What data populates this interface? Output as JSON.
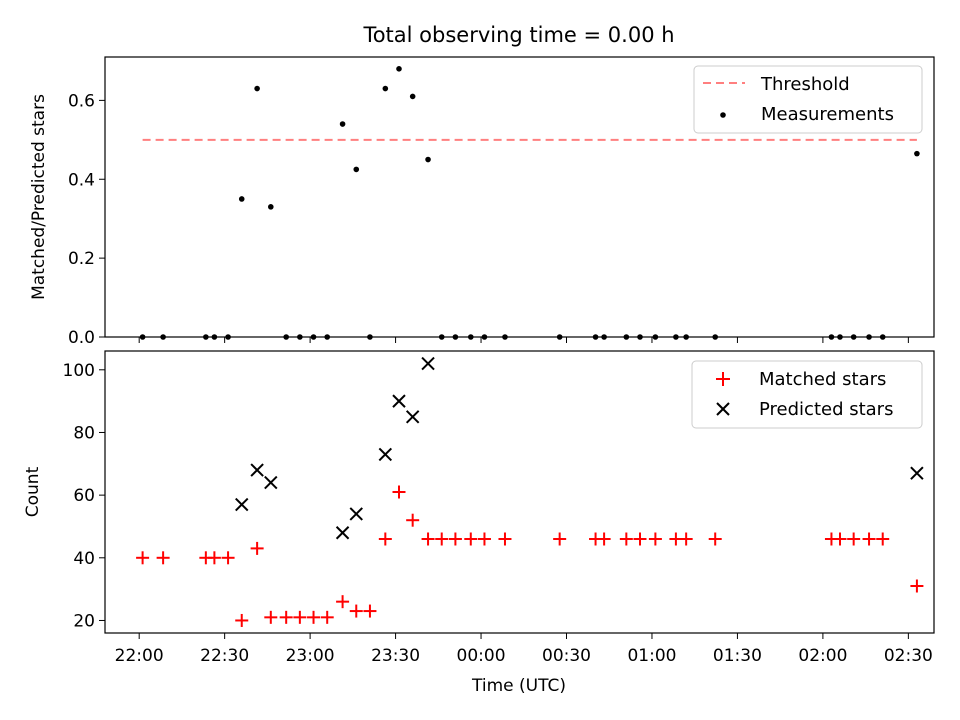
{
  "figure": {
    "title": "Total observing time = 0.00 h",
    "xlabel": "Time (UTC)"
  },
  "chart_data": [
    {
      "type": "scatter",
      "ylabel": "Matched/Predicted stars",
      "x_unit": "hours since 22:00 UTC",
      "xlim": [
        -0.2,
        4.65
      ],
      "ylim": [
        0,
        0.71
      ],
      "yticks": [
        "0.0",
        "0.2",
        "0.4",
        "0.6"
      ],
      "ytick_values": [
        0.0,
        0.2,
        0.4,
        0.6
      ],
      "legend_position": "top-right",
      "threshold": {
        "name": "Threshold",
        "value": 0.5,
        "x_start": 0.02,
        "x_end": 4.55,
        "color": "#ff7f7f"
      },
      "series": [
        {
          "name": "Measurements",
          "color": "#000000",
          "points": [
            [
              0.02,
              0.0
            ],
            [
              0.14,
              0.0
            ],
            [
              0.39,
              0.0
            ],
            [
              0.44,
              0.0
            ],
            [
              0.52,
              0.0
            ],
            [
              0.6,
              0.35
            ],
            [
              0.69,
              0.63
            ],
            [
              0.77,
              0.33
            ],
            [
              0.86,
              0.0
            ],
            [
              0.94,
              0.0
            ],
            [
              1.02,
              0.0
            ],
            [
              1.1,
              0.0
            ],
            [
              1.19,
              0.54
            ],
            [
              1.27,
              0.425
            ],
            [
              1.35,
              0.0
            ],
            [
              1.44,
              0.63
            ],
            [
              1.52,
              0.68
            ],
            [
              1.6,
              0.61
            ],
            [
              1.69,
              0.45
            ],
            [
              1.77,
              0.0
            ],
            [
              1.85,
              0.0
            ],
            [
              1.94,
              0.0
            ],
            [
              2.02,
              0.0
            ],
            [
              2.14,
              0.0
            ],
            [
              2.46,
              0.0
            ],
            [
              2.67,
              0.0
            ],
            [
              2.72,
              0.0
            ],
            [
              2.85,
              0.0
            ],
            [
              2.93,
              0.0
            ],
            [
              3.02,
              0.0
            ],
            [
              3.14,
              0.0
            ],
            [
              3.2,
              0.0
            ],
            [
              3.37,
              0.0
            ],
            [
              4.05,
              0.0
            ],
            [
              4.1,
              0.0
            ],
            [
              4.18,
              0.0
            ],
            [
              4.27,
              0.0
            ],
            [
              4.35,
              0.0
            ],
            [
              4.55,
              0.465
            ]
          ]
        }
      ]
    },
    {
      "type": "scatter",
      "ylabel": "Count",
      "x_unit": "hours since 22:00 UTC",
      "xlim": [
        -0.2,
        4.65
      ],
      "ylim": [
        16,
        106
      ],
      "yticks": [
        "20",
        "40",
        "60",
        "80",
        "100"
      ],
      "ytick_values": [
        20,
        40,
        60,
        80,
        100
      ],
      "xticks": [
        "22:00",
        "22:30",
        "23:00",
        "23:30",
        "00:00",
        "00:30",
        "01:00",
        "01:30",
        "02:00",
        "02:30"
      ],
      "xtick_values": [
        0,
        0.5,
        1.0,
        1.5,
        2.0,
        2.5,
        3.0,
        3.5,
        4.0,
        4.5
      ],
      "legend_position": "top-right",
      "series": [
        {
          "name": "Matched stars",
          "color": "#ff0000",
          "marker": "plus",
          "points": [
            [
              0.02,
              40
            ],
            [
              0.14,
              40
            ],
            [
              0.39,
              40
            ],
            [
              0.44,
              40
            ],
            [
              0.52,
              40
            ],
            [
              0.6,
              20
            ],
            [
              0.69,
              43
            ],
            [
              0.77,
              21
            ],
            [
              0.86,
              21
            ],
            [
              0.94,
              21
            ],
            [
              1.02,
              21
            ],
            [
              1.1,
              21
            ],
            [
              1.19,
              26
            ],
            [
              1.27,
              23
            ],
            [
              1.35,
              23
            ],
            [
              1.44,
              46
            ],
            [
              1.52,
              61
            ],
            [
              1.6,
              52
            ],
            [
              1.69,
              46
            ],
            [
              1.77,
              46
            ],
            [
              1.85,
              46
            ],
            [
              1.94,
              46
            ],
            [
              2.02,
              46
            ],
            [
              2.14,
              46
            ],
            [
              2.46,
              46
            ],
            [
              2.67,
              46
            ],
            [
              2.72,
              46
            ],
            [
              2.85,
              46
            ],
            [
              2.93,
              46
            ],
            [
              3.02,
              46
            ],
            [
              3.14,
              46
            ],
            [
              3.2,
              46
            ],
            [
              3.37,
              46
            ],
            [
              4.05,
              46
            ],
            [
              4.1,
              46
            ],
            [
              4.18,
              46
            ],
            [
              4.27,
              46
            ],
            [
              4.35,
              46
            ],
            [
              4.55,
              31
            ]
          ]
        },
        {
          "name": "Predicted stars",
          "color": "#000000",
          "marker": "x",
          "points": [
            [
              0.6,
              57
            ],
            [
              0.69,
              68
            ],
            [
              0.77,
              64
            ],
            [
              1.19,
              48
            ],
            [
              1.27,
              54
            ],
            [
              1.44,
              73
            ],
            [
              1.52,
              90
            ],
            [
              1.6,
              85
            ],
            [
              1.69,
              102
            ],
            [
              4.55,
              67
            ]
          ]
        }
      ]
    }
  ]
}
